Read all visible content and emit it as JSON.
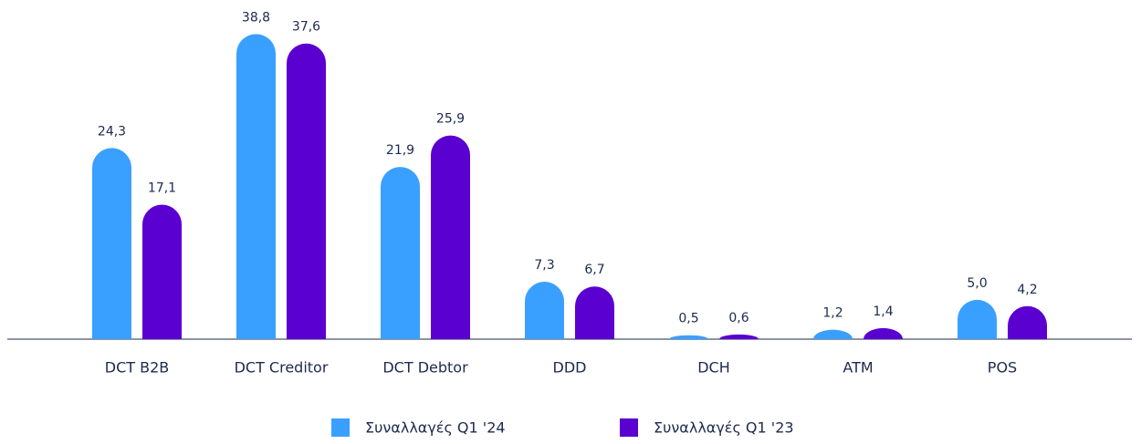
{
  "chart_data": {
    "type": "bar",
    "categories": [
      "DCT B2B",
      "DCT Creditor",
      "DCT Debtor",
      "DDD",
      "DCH",
      "ATM",
      "POS"
    ],
    "series": [
      {
        "name": "Συναλλαγές Q1 '24",
        "color": "#3aa0ff",
        "values": [
          24.3,
          38.8,
          21.9,
          7.3,
          0.5,
          1.2,
          5.0
        ],
        "value_labels": [
          "24,3",
          "38,8",
          "21,9",
          "7,3",
          "0,5",
          "1,2",
          "5,0"
        ]
      },
      {
        "name": "Συναλλαγές Q1 '23",
        "color": "#5a00d0",
        "values": [
          17.1,
          37.6,
          25.9,
          6.7,
          0.6,
          1.4,
          4.2
        ],
        "value_labels": [
          "17,1",
          "37,6",
          "25,9",
          "6,7",
          "0,6",
          "1,4",
          "4,2"
        ]
      }
    ],
    "ylim": [
      0,
      40
    ]
  }
}
